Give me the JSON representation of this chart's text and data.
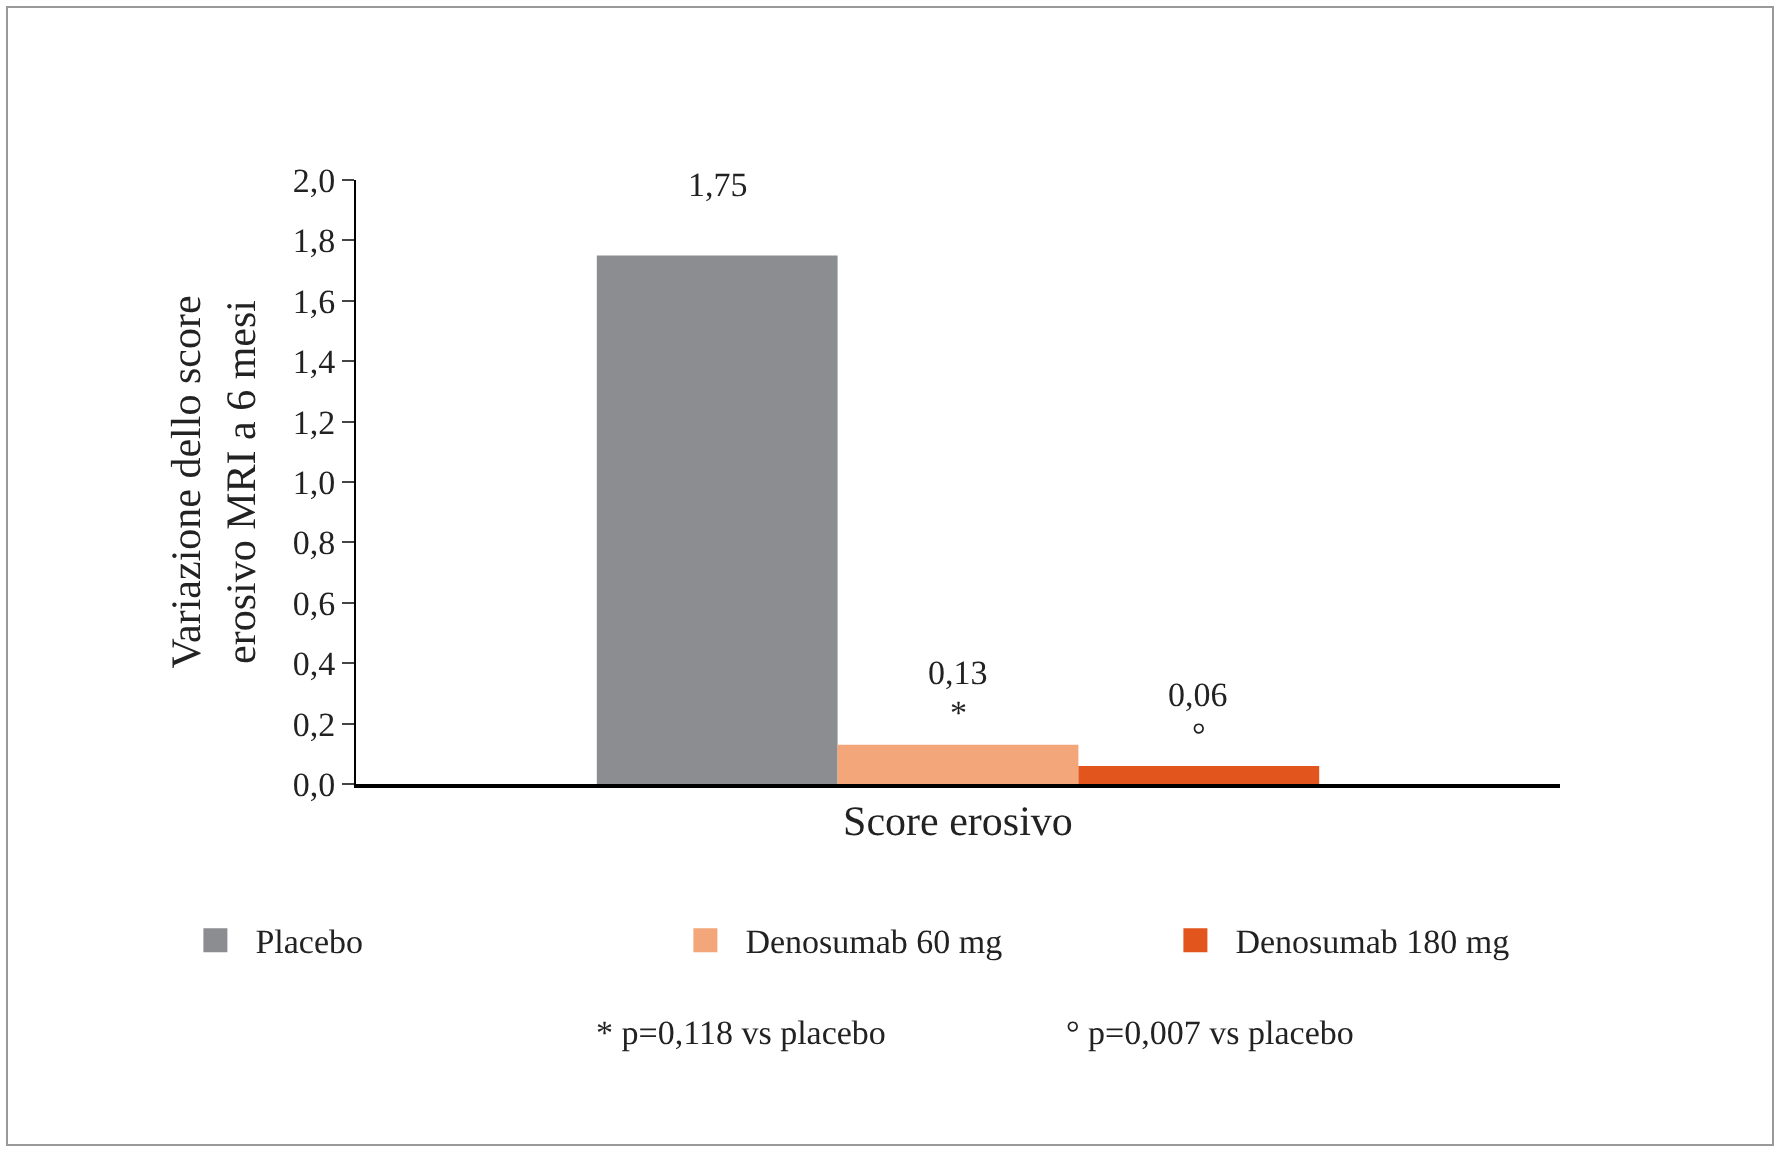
{
  "chart_data": {
    "type": "bar",
    "categories": [
      null
    ],
    "series": [
      {
        "name": "Placebo",
        "color": "#8c8d90",
        "values": [
          1.75
        ],
        "value_labels": [
          "1,75"
        ]
      },
      {
        "name": "Denosumab 60 mg",
        "color": "#f2a679",
        "values": [
          0.13
        ],
        "value_labels": [
          "0,13"
        ]
      },
      {
        "name": "Denosumab 180 mg",
        "color": "#e2561d",
        "values": [
          0.06
        ],
        "value_labels": [
          "0,06"
        ]
      }
    ],
    "xlabel": "Score erosivo",
    "ylabel": "Variazione dello score erosivo MRI a 6 mesi",
    "ylim": [
      0,
      2
    ],
    "yticks": [
      {
        "value": 0,
        "label": "0,0"
      },
      {
        "value": 0.2,
        "label": "0,2"
      },
      {
        "value": 0.4,
        "label": "0,4"
      },
      {
        "value": 0.6,
        "label": "0,6"
      },
      {
        "value": 0.8,
        "label": "0,8"
      },
      {
        "value": 1,
        "label": "1,0"
      },
      {
        "value": 1.2,
        "label": "1,2"
      },
      {
        "value": 1.4,
        "label": "1,4"
      },
      {
        "value": 1.6,
        "label": "1,6"
      },
      {
        "value": 1.8,
        "label": "1,8"
      },
      {
        "value": 2,
        "label": "2,0"
      }
    ],
    "annotations": [
      "*",
      "°",
      "* p=0,118 vs placebo",
      "° p=0,007 vs placebo"
    ],
    "legend": "bottom",
    "grid": false
  }
}
